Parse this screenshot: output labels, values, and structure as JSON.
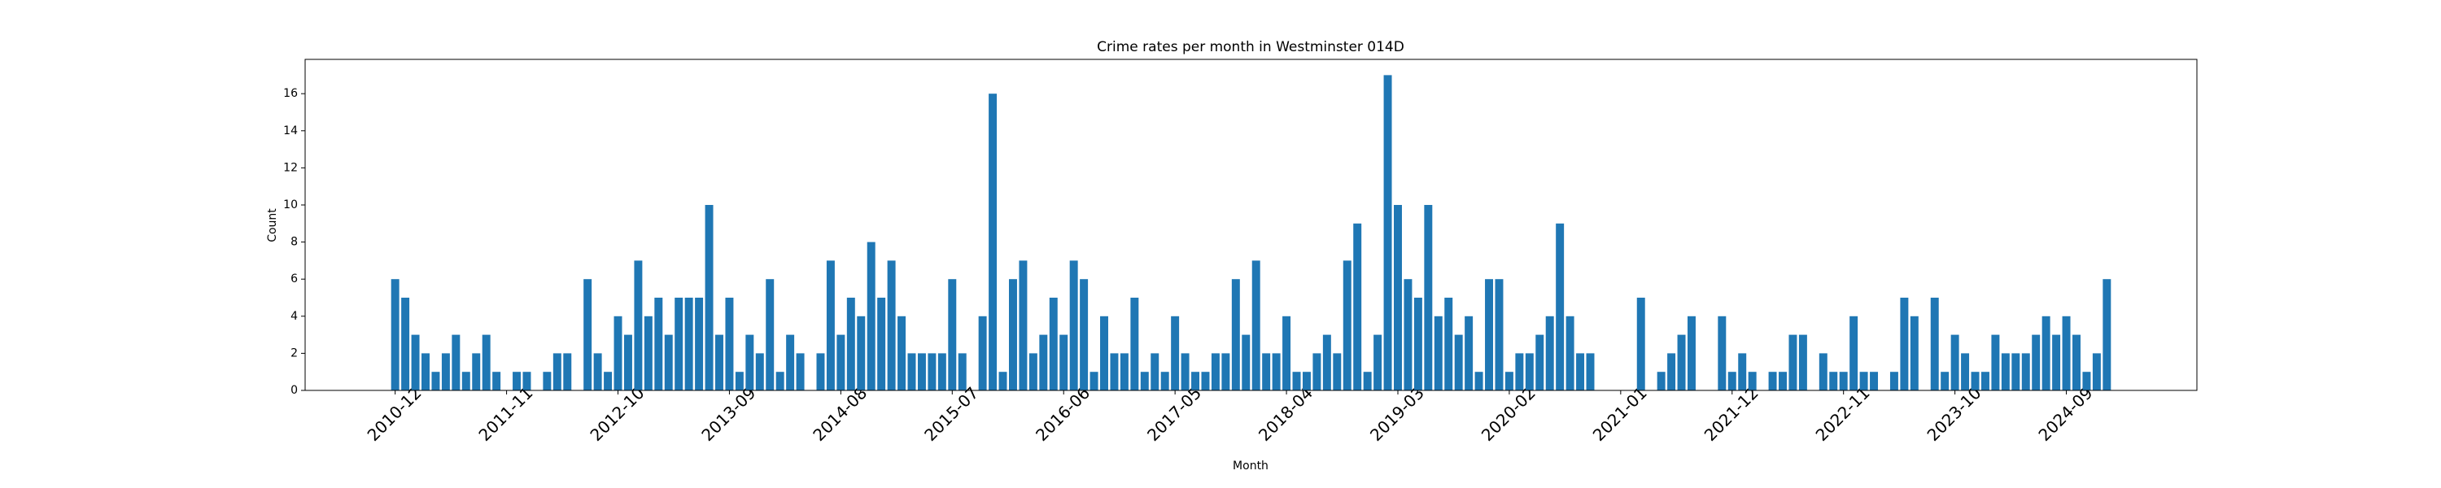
{
  "chart_data": {
    "type": "bar",
    "title": "Crime rates per month in Westminster 014D",
    "x_label": "Month",
    "y_label": "Count",
    "color": "#1f77b4",
    "categories": [
      "2010-12",
      null,
      null,
      null,
      null,
      null,
      null,
      null,
      null,
      null,
      null,
      "2011-11",
      null,
      null,
      null,
      null,
      null,
      null,
      null,
      null,
      null,
      null,
      "2012-10",
      null,
      null,
      null,
      null,
      null,
      null,
      null,
      null,
      null,
      null,
      "2013-09",
      null,
      null,
      null,
      null,
      null,
      null,
      null,
      null,
      null,
      null,
      "2014-08",
      null,
      null,
      null,
      null,
      null,
      null,
      null,
      null,
      null,
      null,
      "2015-07",
      null,
      null,
      null,
      null,
      null,
      null,
      null,
      null,
      null,
      null,
      "2016-06",
      null,
      null,
      null,
      null,
      null,
      null,
      null,
      null,
      null,
      null,
      "2017-05",
      null,
      null,
      null,
      null,
      null,
      null,
      null,
      null,
      null,
      null,
      "2018-04",
      null,
      null,
      null,
      null,
      null,
      null,
      null,
      null,
      null,
      null,
      "2019-03",
      null,
      null,
      null,
      null,
      null,
      null,
      null,
      null,
      null,
      null,
      "2020-02",
      null,
      null,
      null,
      null,
      null,
      null,
      null,
      null,
      null,
      null,
      "2021-01",
      null,
      null,
      null,
      null,
      null,
      null,
      null,
      null,
      null,
      null,
      "2021-12",
      null,
      null,
      null,
      null,
      null,
      null,
      null,
      null,
      null,
      null,
      "2022-11",
      null,
      null,
      null,
      null,
      null,
      null,
      null,
      null,
      null,
      null,
      "2023-10",
      null,
      null,
      null,
      null,
      null,
      null,
      null,
      null,
      null,
      null,
      "2024-09",
      null,
      null,
      null,
      null
    ],
    "values": [
      6,
      5,
      3,
      2,
      1,
      2,
      3,
      1,
      2,
      3,
      1,
      0,
      1,
      1,
      0,
      1,
      2,
      2,
      0,
      6,
      2,
      1,
      4,
      3,
      7,
      4,
      5,
      3,
      5,
      5,
      5,
      10,
      3,
      5,
      1,
      3,
      2,
      6,
      1,
      3,
      2,
      0,
      2,
      7,
      3,
      5,
      4,
      8,
      5,
      7,
      4,
      2,
      2,
      2,
      2,
      6,
      2,
      0,
      4,
      16,
      1,
      6,
      7,
      2,
      3,
      5,
      3,
      7,
      6,
      1,
      4,
      2,
      2,
      5,
      1,
      2,
      1,
      4,
      2,
      1,
      1,
      2,
      2,
      6,
      3,
      7,
      2,
      2,
      4,
      1,
      1,
      2,
      3,
      2,
      7,
      9,
      1,
      3,
      17,
      10,
      6,
      5,
      10,
      4,
      5,
      3,
      4,
      1,
      6,
      6,
      1,
      2,
      2,
      3,
      4,
      9,
      4,
      2,
      2,
      0,
      0,
      0,
      0,
      5,
      0,
      1,
      2,
      3,
      4,
      0,
      0,
      4,
      1,
      2,
      1,
      0,
      1,
      1,
      3,
      3,
      0,
      2,
      1,
      1,
      4,
      1,
      1,
      0,
      1,
      5,
      4,
      0,
      5,
      1,
      3,
      2,
      1,
      1,
      3,
      2,
      2,
      2,
      3,
      4,
      3,
      4,
      3,
      1,
      2,
      6
    ],
    "ylim": [
      0,
      17.85
    ],
    "yticks": [
      0,
      2,
      4,
      6,
      8,
      10,
      12,
      14,
      16
    ]
  }
}
